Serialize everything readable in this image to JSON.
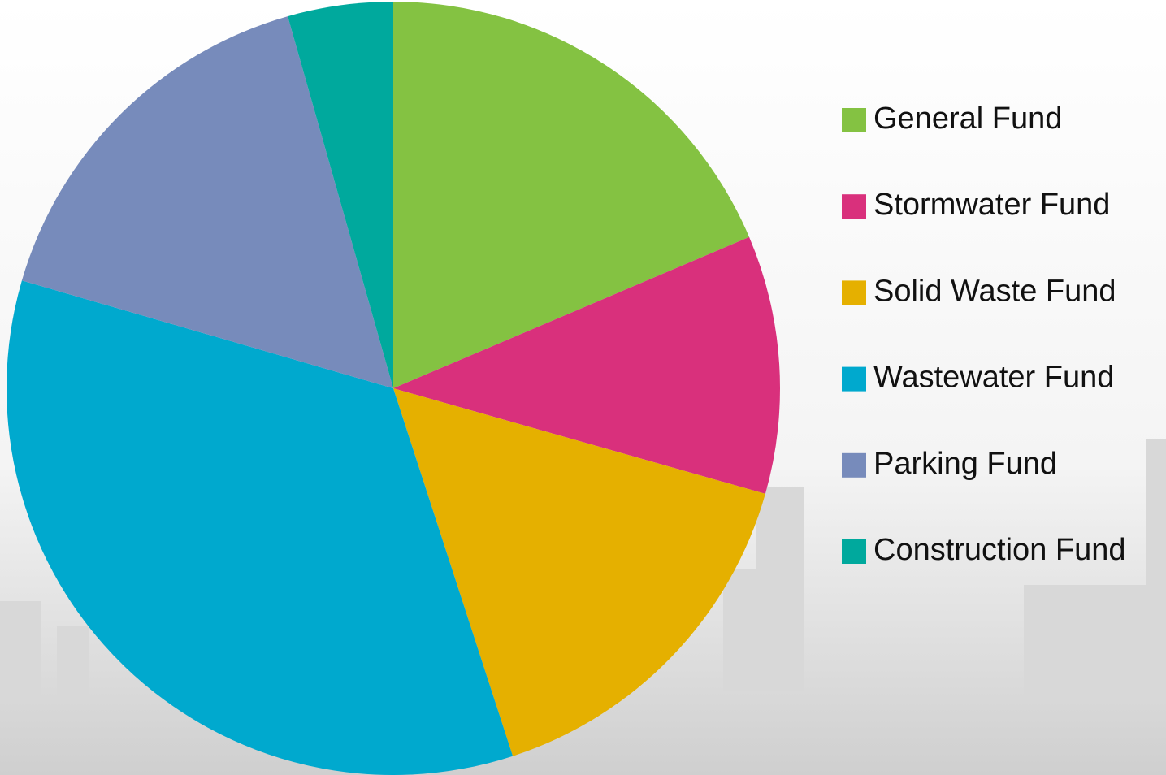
{
  "chart_data": {
    "type": "pie",
    "categories": [
      "General Fund",
      "Stormwater Fund",
      "Solid Waste Fund",
      "Wastewater Fund",
      "Parking Fund",
      "Construction Fund"
    ],
    "values": [
      18.6,
      10.8,
      15.6,
      34.5,
      16.1,
      4.4
    ],
    "colors": [
      "#84c242",
      "#d9307c",
      "#e5b000",
      "#00a9ce",
      "#778bbb",
      "#00a99d"
    ],
    "legend": "right"
  }
}
